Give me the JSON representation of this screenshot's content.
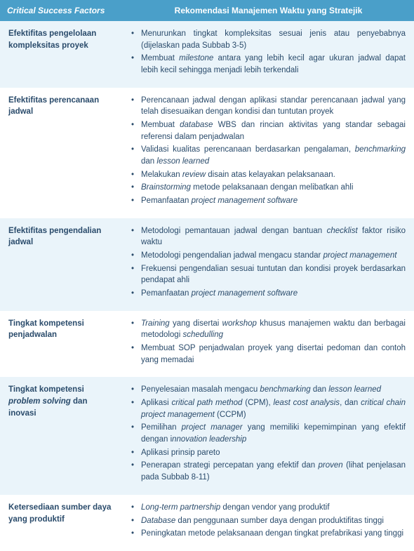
{
  "header": {
    "col1": "Critical Success Factors",
    "col2": "Rekomendasi Manajemen Waktu yang Stratejik"
  },
  "colors": {
    "header_bg": "#4a9fc9",
    "header_text": "#ffffff",
    "row_even_bg": "#eaf4fa",
    "row_odd_bg": "#ffffff",
    "body_text": "#2a4b6b"
  },
  "rows": [
    {
      "factor_html": "Efektifitas pengelolaan kompleksitas proyek",
      "items": [
        "Menurunkan tingkat kompleksitas sesuai jenis atau penyebabnya (dijelaskan pada Subbab 3-5)",
        "Membuat <span class=\"it\">milestone</span> antara yang lebih kecil agar ukuran jadwal dapat lebih kecil sehingga menjadi lebih terkendali"
      ]
    },
    {
      "factor_html": "Efektifitas perencanaan jadwal",
      "items": [
        "Perencanaan jadwal dengan aplikasi standar perencanaan jadwal yang telah disesuaikan dengan kondisi dan tuntutan proyek",
        "Membuat <span class=\"it\">database</span> WBS dan rincian aktivitas yang standar sebagai referensi dalam penjadwalan",
        "Validasi kualitas perencanaan berdasarkan pengalaman, <span class=\"it\">benchmarking</span> dan <span class=\"it\">lesson learned</span>",
        "Melakukan <span class=\"it\">review</span> disain atas kelayakan pelaksanaan.",
        "<span class=\"it\">Brainstorming</span> metode pelaksanaan dengan melibatkan ahli",
        "Pemanfaatan <span class=\"it\">project management software</span>"
      ]
    },
    {
      "factor_html": "Efektifitas pengendalian jadwal",
      "items": [
        "Metodologi pemantauan jadwal dengan bantuan <span class=\"it\">checklist</span> faktor risiko waktu",
        "Metodologi pengendalian jadwal mengacu standar <span class=\"it\">project management</span>",
        "Frekuensi pengendalian sesuai tuntutan dan kondisi proyek berdasarkan pendapat ahli",
        "Pemanfaatan <span class=\"it\">project management software</span>"
      ]
    },
    {
      "factor_html": "Tingkat kompetensi penjadwalan",
      "items": [
        "<span class=\"it\">Training</span> yang disertai <span class=\"it\">workshop</span> khusus manajemen waktu dan berbagai metodologi <span class=\"it\">schedulling</span>",
        "Membuat SOP penjadwalan proyek yang disertai pedoman dan contoh yang memadai"
      ]
    },
    {
      "factor_html": "Tingkat kompetensi <span class=\"it\">problem solving</span> dan inovasi",
      "items": [
        "Penyelesaian masalah mengacu <span class=\"it\">benchmarking</span> dan <span class=\"it\">lesson learned</span>",
        "Aplikasi <span class=\"it\">critical path method</span> (CPM), <span class=\"it\">least cost analysis</span>, dan <span class=\"it\">critical chain project management</span> (CCPM)",
        "Pemilihan <span class=\"it\">project manager</span> yang memiliki kepemimpinan yang efektif dengan i<span class=\"it\">nnovation leadership</span>",
        "Aplikasi prinsip pareto",
        "Penerapan strategi percepatan yang efektif dan <span class=\"it\">proven</span> (lihat penjelasan pada Subbab 8-11)"
      ]
    },
    {
      "factor_html": "Ketersediaan sumber daya yang produktif",
      "items": [
        "<span class=\"it\">Long-term partnership</span> dengan vendor yang produktif",
        "<span class=\"it\">Database</span> dan penggunaan sumber daya dengan produktifitas tinggi",
        "Peningkatan metode pelaksanaan dengan tingkat prefabrikasi yang tinggi"
      ]
    }
  ]
}
